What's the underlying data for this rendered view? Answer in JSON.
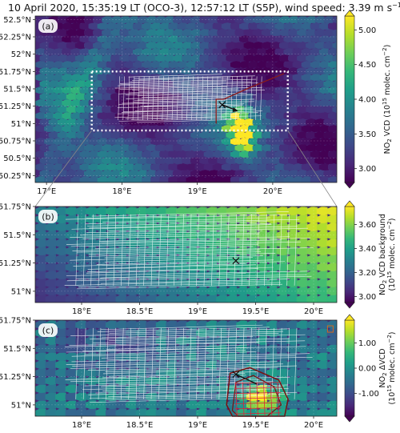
{
  "title": "10 April 2020, 15:35:19 LT (OCO-3), 12:57:12 LT (S5P), wind speed: 3.39 m s",
  "title_sup": "−1",
  "colors": {
    "viridis": [
      "#440154",
      "#482878",
      "#3e4989",
      "#31688e",
      "#26828e",
      "#1f9e89",
      "#35b779",
      "#6ece58",
      "#b5de2b",
      "#fde725"
    ],
    "box_border": "#8b1a1a",
    "box_dots": "#ffffff",
    "plume_contour": "#7a1010",
    "grid_cells": "#d7263d",
    "oco_swath": "#ffffff",
    "wind_arrow": "#111111"
  },
  "chart_data": [
    {
      "type": "heatmap",
      "panel_label": "(a)",
      "quantity": "NO2 VCD",
      "colorbar_label_line1": "NO",
      "colorbar_label_sub": "2",
      "colorbar_label_line2": " VCD (10",
      "colorbar_label_sup": "15",
      "colorbar_label_line3": " molec. cm",
      "colorbar_label_sup2": "−2",
      "colorbar_label_end": ")",
      "clim": [
        2.8,
        5.2
      ],
      "colorbar_ticks": [
        "5.00",
        "4.50",
        "4.00",
        "3.50",
        "3.00"
      ],
      "colorbar_tick_values": [
        5.0,
        4.5,
        4.0,
        3.5,
        3.0
      ],
      "xlabels": [
        "17°E",
        "18°E",
        "19°E",
        "20°E"
      ],
      "xtick_values": [
        17,
        18,
        19,
        20
      ],
      "ylabels": [
        "52.5°N",
        "52.25°N",
        "52°N",
        "51.75°N",
        "51.5°N",
        "51.25°N",
        "51°N",
        "50.75°N",
        "50.5°N",
        "50.25°N"
      ],
      "ytick_values": [
        52.5,
        52.25,
        52.0,
        51.75,
        51.5,
        51.25,
        51.0,
        50.75,
        50.5,
        50.25
      ],
      "xlim": [
        16.85,
        20.85
      ],
      "ylim": [
        50.15,
        52.55
      ],
      "inset_box": {
        "lon": [
          17.6,
          20.2
        ],
        "lat": [
          50.9,
          51.75
        ]
      },
      "source_marker": {
        "lon": 19.33,
        "lat": 51.27
      },
      "wind_direction": "south-east"
    },
    {
      "type": "heatmap",
      "panel_label": "(b)",
      "quantity": "NO2 VCD background",
      "colorbar_label_line1": "NO",
      "colorbar_label_sub": "2",
      "colorbar_label_line2": " VCD background",
      "colorbar_label_line3": "(10",
      "colorbar_label_sup": "15",
      "colorbar_label_line4": " molec. cm",
      "colorbar_label_sup2": "−2",
      "colorbar_label_end": ")",
      "clim": [
        2.95,
        3.75
      ],
      "colorbar_ticks": [
        "3.60",
        "3.40",
        "3.20",
        "3.00"
      ],
      "colorbar_tick_values": [
        3.6,
        3.4,
        3.2,
        3.0
      ],
      "xlabels": [
        "18°E",
        "18.5°E",
        "19°E",
        "19.5°E",
        "20°E"
      ],
      "xtick_values": [
        18,
        18.5,
        19,
        19.5,
        20
      ],
      "ylabels": [
        "51.75°N",
        "51.5°N",
        "51.25°N",
        "51°N"
      ],
      "ytick_values": [
        51.75,
        51.5,
        51.25,
        51.0
      ],
      "xlim": [
        17.6,
        20.2
      ],
      "ylim": [
        50.9,
        51.75
      ],
      "source_marker": {
        "lon": 19.33,
        "lat": 51.27
      }
    },
    {
      "type": "heatmap",
      "panel_label": "(c)",
      "quantity": "NO2 ΔVCD",
      "colorbar_label_line1": "NO",
      "colorbar_label_sub": "2",
      "colorbar_label_line2": " ΔVCD",
      "colorbar_label_line3": "(10",
      "colorbar_label_sup": "15",
      "colorbar_label_line4": " molec. cm",
      "colorbar_label_sup2": "−2",
      "colorbar_label_end": ")",
      "clim": [
        -1.9,
        1.9
      ],
      "colorbar_ticks": [
        "1.00",
        "0.00",
        "-1.00"
      ],
      "colorbar_tick_values": [
        1.0,
        0.0,
        -1.0
      ],
      "xlabels": [
        "18°E",
        "18.5°E",
        "19°E",
        "19.5°E",
        "20°E"
      ],
      "xtick_values": [
        18,
        18.5,
        19,
        19.5,
        20
      ],
      "ylabels": [
        "51.75°N",
        "51.5°N",
        "51.25°N",
        "51°N"
      ],
      "ytick_values": [
        51.75,
        51.5,
        51.25,
        51.0
      ],
      "xlim": [
        17.6,
        20.2
      ],
      "ylim": [
        50.9,
        51.75
      ],
      "source_marker": {
        "lon": 19.33,
        "lat": 51.27
      }
    }
  ]
}
